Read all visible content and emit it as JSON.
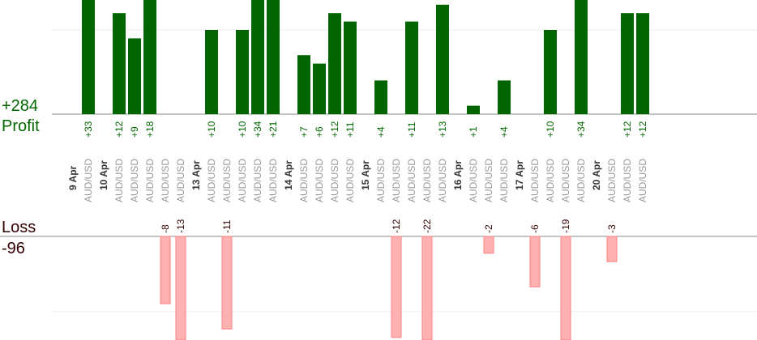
{
  "chart_data": {
    "type": "bar",
    "profit_total": "+284",
    "profit_label": "Profit",
    "loss_label": "Loss",
    "loss_total": "-96",
    "colors": {
      "profit_bar": "#006400",
      "loss_bar": "#ffb0b0",
      "loss_bar_border": "#ff8080"
    },
    "days": [
      "9 Apr",
      "10 Apr",
      "13 Apr",
      "14 Apr",
      "15 Apr",
      "16 Apr",
      "17 Apr",
      "20 Apr"
    ],
    "pair": "AUD/USD",
    "trades": [
      {
        "day": "9 Apr",
        "value": 33
      },
      {
        "day": "10 Apr",
        "value": 12
      },
      {
        "day": "10 Apr",
        "value": 9
      },
      {
        "day": "10 Apr",
        "value": 18
      },
      {
        "day": "10 Apr",
        "value": -8
      },
      {
        "day": "10 Apr",
        "value": -13
      },
      {
        "day": "13 Apr",
        "value": 10
      },
      {
        "day": "13 Apr",
        "value": -11
      },
      {
        "day": "13 Apr",
        "value": 10
      },
      {
        "day": "13 Apr",
        "value": 34
      },
      {
        "day": "13 Apr",
        "value": 21
      },
      {
        "day": "14 Apr",
        "value": 7
      },
      {
        "day": "14 Apr",
        "value": 6
      },
      {
        "day": "14 Apr",
        "value": 12
      },
      {
        "day": "14 Apr",
        "value": 11
      },
      {
        "day": "15 Apr",
        "value": 4
      },
      {
        "day": "15 Apr",
        "value": -12
      },
      {
        "day": "15 Apr",
        "value": 11
      },
      {
        "day": "15 Apr",
        "value": -22
      },
      {
        "day": "15 Apr",
        "value": 13
      },
      {
        "day": "16 Apr",
        "value": 1
      },
      {
        "day": "16 Apr",
        "value": -2
      },
      {
        "day": "16 Apr",
        "value": 4
      },
      {
        "day": "17 Apr",
        "value": -6
      },
      {
        "day": "17 Apr",
        "value": 10
      },
      {
        "day": "17 Apr",
        "value": -19
      },
      {
        "day": "17 Apr",
        "value": 34
      },
      {
        "day": "20 Apr",
        "value": -3
      },
      {
        "day": "20 Apr",
        "value": 12
      },
      {
        "day": "20 Apr",
        "value": 12
      }
    ],
    "profit_ylim": [
      0,
      13
    ],
    "loss_ylim": [
      0,
      11.5
    ],
    "grid": true
  }
}
